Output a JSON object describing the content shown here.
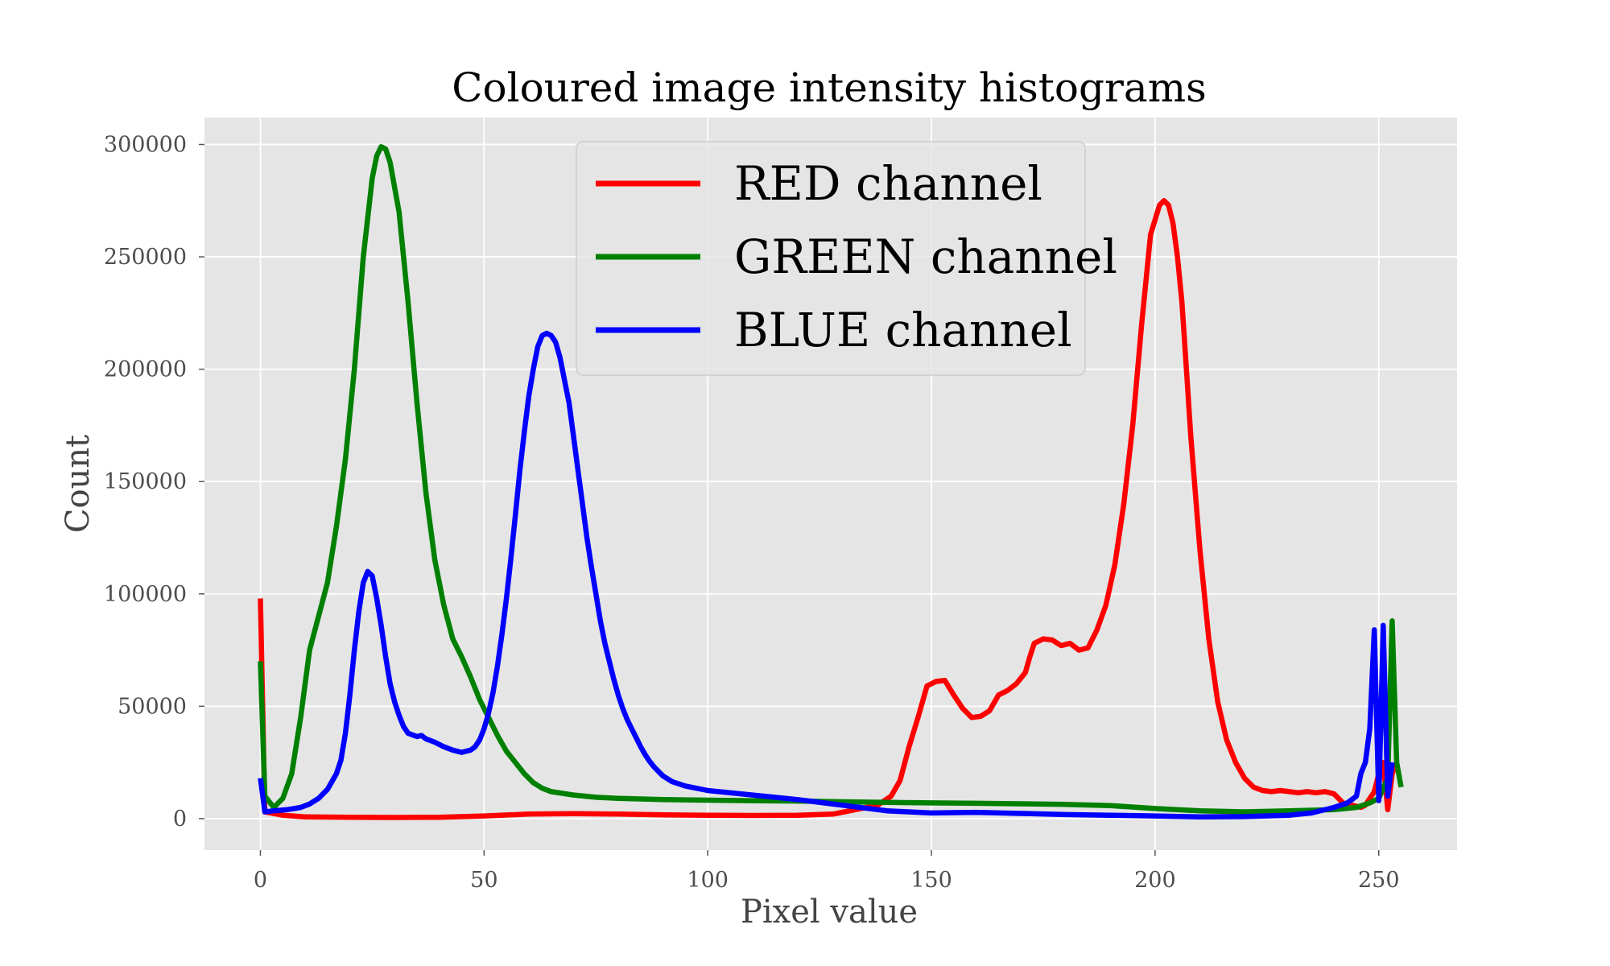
{
  "chart_data": {
    "type": "line",
    "title": "Coloured image intensity histograms",
    "xlabel": "Pixel value",
    "ylabel": "Count",
    "xlim": [
      -12.5,
      267.5
    ],
    "ylim": [
      -14000,
      312000
    ],
    "xticks": [
      0,
      50,
      100,
      150,
      200,
      250
    ],
    "yticks": [
      0,
      50000,
      100000,
      150000,
      200000,
      250000,
      300000
    ],
    "xtick_labels": [
      "0",
      "50",
      "100",
      "150",
      "200",
      "250"
    ],
    "ytick_labels": [
      "0",
      "50000",
      "100000",
      "150000",
      "200000",
      "250000",
      "300000"
    ],
    "grid": true,
    "legend_position": "upper-center",
    "series": [
      {
        "name": "RED channel",
        "color": "#ff0000",
        "points": [
          [
            0,
            98000
          ],
          [
            1,
            3000
          ],
          [
            5,
            1500
          ],
          [
            10,
            800
          ],
          [
            20,
            600
          ],
          [
            30,
            500
          ],
          [
            40,
            600
          ],
          [
            50,
            1200
          ],
          [
            60,
            2000
          ],
          [
            70,
            2200
          ],
          [
            80,
            2000
          ],
          [
            90,
            1700
          ],
          [
            100,
            1500
          ],
          [
            110,
            1400
          ],
          [
            120,
            1500
          ],
          [
            128,
            2000
          ],
          [
            133,
            4000
          ],
          [
            138,
            6000
          ],
          [
            141,
            10000
          ],
          [
            143,
            17000
          ],
          [
            145,
            32000
          ],
          [
            147,
            45000
          ],
          [
            149,
            59000
          ],
          [
            151,
            61000
          ],
          [
            153,
            61500
          ],
          [
            155,
            55000
          ],
          [
            157,
            49000
          ],
          [
            159,
            45000
          ],
          [
            161,
            45500
          ],
          [
            163,
            48000
          ],
          [
            165,
            55000
          ],
          [
            167,
            57000
          ],
          [
            169,
            60000
          ],
          [
            171,
            65000
          ],
          [
            172,
            72000
          ],
          [
            173,
            78000
          ],
          [
            175,
            80000
          ],
          [
            177,
            79500
          ],
          [
            179,
            77000
          ],
          [
            181,
            78000
          ],
          [
            183,
            75000
          ],
          [
            185,
            76000
          ],
          [
            187,
            84000
          ],
          [
            189,
            95000
          ],
          [
            191,
            113000
          ],
          [
            193,
            140000
          ],
          [
            195,
            175000
          ],
          [
            197,
            220000
          ],
          [
            199,
            260000
          ],
          [
            201,
            273000
          ],
          [
            202,
            275000
          ],
          [
            203,
            273000
          ],
          [
            204,
            265000
          ],
          [
            205,
            250000
          ],
          [
            206,
            230000
          ],
          [
            207,
            200000
          ],
          [
            208,
            170000
          ],
          [
            210,
            120000
          ],
          [
            212,
            80000
          ],
          [
            214,
            52000
          ],
          [
            216,
            35000
          ],
          [
            218,
            25000
          ],
          [
            220,
            18000
          ],
          [
            222,
            14000
          ],
          [
            224,
            12500
          ],
          [
            226,
            12000
          ],
          [
            228,
            12500
          ],
          [
            230,
            12000
          ],
          [
            232,
            11500
          ],
          [
            234,
            12000
          ],
          [
            236,
            11500
          ],
          [
            238,
            12000
          ],
          [
            240,
            11000
          ],
          [
            242,
            7000
          ],
          [
            244,
            6000
          ],
          [
            246,
            5000
          ],
          [
            247,
            6000
          ],
          [
            249,
            12000
          ],
          [
            250,
            20000
          ],
          [
            251,
            25000
          ],
          [
            252,
            4000
          ],
          [
            253,
            20000
          ],
          [
            254,
            25000
          ]
        ]
      },
      {
        "name": "GREEN channel",
        "color": "#008000",
        "points": [
          [
            0,
            70000
          ],
          [
            1,
            10000
          ],
          [
            3,
            5000
          ],
          [
            5,
            9000
          ],
          [
            7,
            20000
          ],
          [
            9,
            45000
          ],
          [
            11,
            75000
          ],
          [
            13,
            90000
          ],
          [
            15,
            105000
          ],
          [
            17,
            130000
          ],
          [
            19,
            160000
          ],
          [
            21,
            200000
          ],
          [
            23,
            250000
          ],
          [
            25,
            285000
          ],
          [
            26,
            295000
          ],
          [
            27,
            299000
          ],
          [
            28,
            298000
          ],
          [
            29,
            292000
          ],
          [
            31,
            270000
          ],
          [
            33,
            230000
          ],
          [
            35,
            185000
          ],
          [
            37,
            145000
          ],
          [
            39,
            115000
          ],
          [
            41,
            95000
          ],
          [
            43,
            80000
          ],
          [
            45,
            72000
          ],
          [
            47,
            63000
          ],
          [
            49,
            53000
          ],
          [
            51,
            45000
          ],
          [
            53,
            37000
          ],
          [
            55,
            30000
          ],
          [
            57,
            25000
          ],
          [
            59,
            20000
          ],
          [
            61,
            16000
          ],
          [
            63,
            13500
          ],
          [
            65,
            12000
          ],
          [
            70,
            10500
          ],
          [
            75,
            9500
          ],
          [
            80,
            9000
          ],
          [
            90,
            8500
          ],
          [
            100,
            8200
          ],
          [
            110,
            8000
          ],
          [
            120,
            7800
          ],
          [
            130,
            7500
          ],
          [
            140,
            7200
          ],
          [
            150,
            7000
          ],
          [
            160,
            6800
          ],
          [
            170,
            6600
          ],
          [
            180,
            6300
          ],
          [
            190,
            5800
          ],
          [
            200,
            4500
          ],
          [
            210,
            3500
          ],
          [
            220,
            3000
          ],
          [
            230,
            3500
          ],
          [
            240,
            4000
          ],
          [
            245,
            5000
          ],
          [
            248,
            7000
          ],
          [
            250,
            9000
          ],
          [
            252,
            18000
          ],
          [
            253,
            88000
          ],
          [
            254,
            25000
          ],
          [
            255,
            14000
          ]
        ]
      },
      {
        "name": "BLUE channel",
        "color": "#0000ff",
        "points": [
          [
            0,
            18000
          ],
          [
            1,
            3000
          ],
          [
            3,
            3500
          ],
          [
            6,
            4000
          ],
          [
            9,
            5000
          ],
          [
            11,
            6500
          ],
          [
            13,
            9000
          ],
          [
            15,
            13000
          ],
          [
            17,
            20000
          ],
          [
            18,
            26000
          ],
          [
            19,
            38000
          ],
          [
            20,
            55000
          ],
          [
            21,
            75000
          ],
          [
            22,
            92000
          ],
          [
            23,
            105000
          ],
          [
            24,
            110000
          ],
          [
            25,
            108000
          ],
          [
            26,
            98000
          ],
          [
            27,
            86000
          ],
          [
            28,
            72000
          ],
          [
            29,
            60000
          ],
          [
            30,
            52000
          ],
          [
            31,
            46000
          ],
          [
            32,
            41000
          ],
          [
            33,
            38000
          ],
          [
            35,
            36500
          ],
          [
            36,
            37000
          ],
          [
            37,
            35500
          ],
          [
            39,
            34000
          ],
          [
            41,
            32000
          ],
          [
            43,
            30500
          ],
          [
            45,
            29500
          ],
          [
            47,
            30500
          ],
          [
            48,
            32000
          ],
          [
            49,
            35000
          ],
          [
            50,
            40000
          ],
          [
            51,
            47000
          ],
          [
            52,
            56000
          ],
          [
            53,
            68000
          ],
          [
            54,
            82000
          ],
          [
            55,
            98000
          ],
          [
            56,
            116000
          ],
          [
            57,
            135000
          ],
          [
            58,
            155000
          ],
          [
            59,
            172000
          ],
          [
            60,
            188000
          ],
          [
            61,
            200000
          ],
          [
            62,
            210000
          ],
          [
            63,
            215000
          ],
          [
            64,
            216000
          ],
          [
            65,
            215000
          ],
          [
            66,
            212000
          ],
          [
            67,
            205000
          ],
          [
            68,
            195000
          ],
          [
            69,
            185000
          ],
          [
            70,
            170000
          ],
          [
            71,
            155000
          ],
          [
            72,
            140000
          ],
          [
            73,
            125000
          ],
          [
            74,
            112000
          ],
          [
            75,
            100000
          ],
          [
            76,
            88000
          ],
          [
            77,
            78000
          ],
          [
            78,
            70000
          ],
          [
            79,
            62000
          ],
          [
            80,
            55000
          ],
          [
            81,
            49000
          ],
          [
            82,
            44000
          ],
          [
            83,
            40000
          ],
          [
            84,
            36000
          ],
          [
            85,
            32000
          ],
          [
            86,
            28500
          ],
          [
            87,
            25500
          ],
          [
            88,
            23000
          ],
          [
            89,
            21000
          ],
          [
            90,
            19000
          ],
          [
            92,
            16500
          ],
          [
            95,
            14500
          ],
          [
            100,
            12500
          ],
          [
            110,
            10500
          ],
          [
            120,
            8500
          ],
          [
            130,
            6000
          ],
          [
            140,
            3500
          ],
          [
            150,
            2500
          ],
          [
            160,
            2800
          ],
          [
            170,
            2300
          ],
          [
            180,
            1800
          ],
          [
            190,
            1500
          ],
          [
            200,
            1200
          ],
          [
            210,
            800
          ],
          [
            220,
            900
          ],
          [
            230,
            1500
          ],
          [
            235,
            2500
          ],
          [
            240,
            5000
          ],
          [
            243,
            7000
          ],
          [
            245,
            10000
          ],
          [
            246,
            20000
          ],
          [
            247,
            25000
          ],
          [
            248,
            40000
          ],
          [
            249,
            84000
          ],
          [
            250,
            8000
          ],
          [
            251,
            86000
          ],
          [
            252,
            10000
          ],
          [
            253,
            25000
          ]
        ]
      }
    ]
  }
}
